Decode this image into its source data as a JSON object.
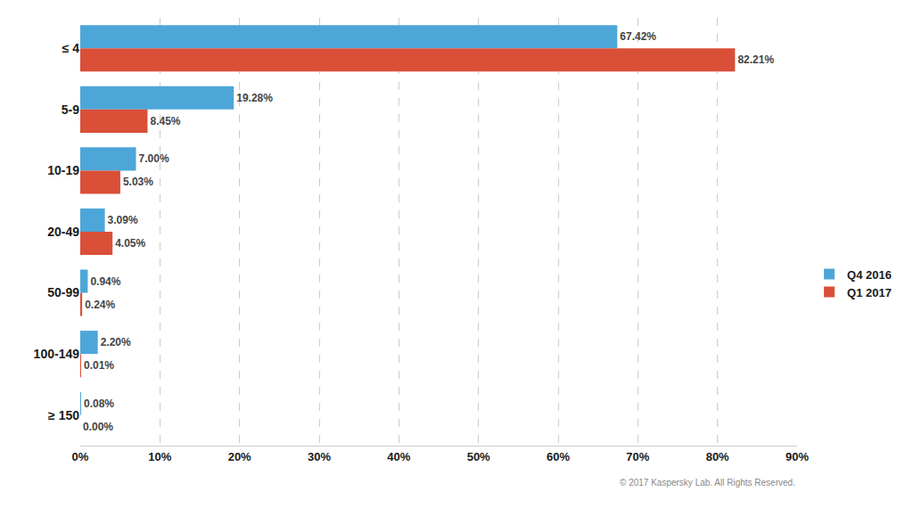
{
  "chart_data": {
    "type": "bar",
    "orientation": "horizontal",
    "categories": [
      "≤ 4",
      "5-9",
      "10-19",
      "20-49",
      "50-99",
      "100-149",
      "≥ 150"
    ],
    "series": [
      {
        "name": "Q4 2016",
        "color": "#4da6d8",
        "values": [
          67.42,
          19.28,
          7.0,
          3.09,
          0.94,
          2.2,
          0.08
        ],
        "value_labels": [
          "67.42%",
          "19.28%",
          "7.00%",
          "3.09%",
          "0.94%",
          "2.20%",
          "0.08%"
        ]
      },
      {
        "name": "Q1 2017",
        "color": "#d94f38",
        "values": [
          82.21,
          8.45,
          5.03,
          4.05,
          0.24,
          0.01,
          0.0
        ],
        "value_labels": [
          "82.21%",
          "8.45%",
          "5.03%",
          "4.05%",
          "0.24%",
          "0.01%",
          "0.00%"
        ]
      }
    ],
    "xlim": [
      0,
      90
    ],
    "xticks": [
      {
        "value": 0,
        "label": "0%"
      },
      {
        "value": 10,
        "label": "10%"
      },
      {
        "value": 20,
        "label": "20%"
      },
      {
        "value": 30,
        "label": "30%"
      },
      {
        "value": 40,
        "label": "40%"
      },
      {
        "value": 50,
        "label": "50%"
      },
      {
        "value": 60,
        "label": "60%"
      },
      {
        "value": 70,
        "label": "70%"
      },
      {
        "value": 80,
        "label": "80%"
      },
      {
        "value": 90,
        "label": "90%"
      }
    ],
    "grid": true,
    "legend": "right",
    "data_labels": true,
    "annotations": [
      "© 2017 Kaspersky Lab. All Rights Reserved."
    ]
  }
}
